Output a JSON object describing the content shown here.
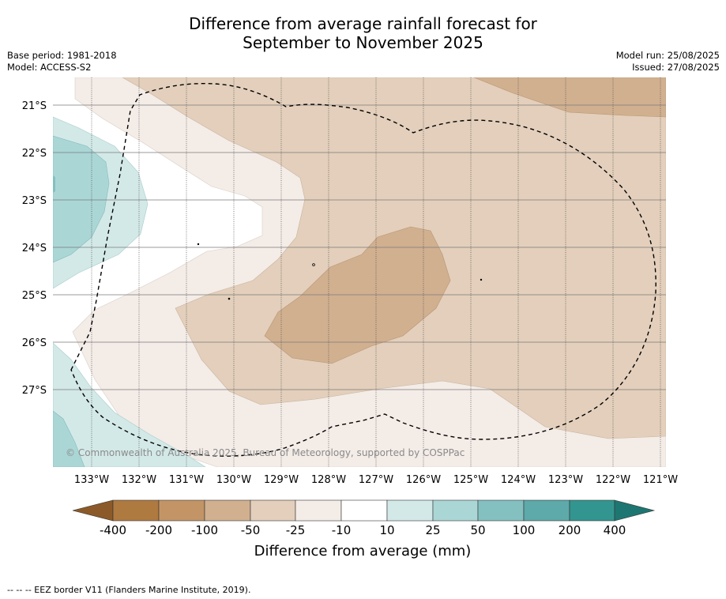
{
  "header": {
    "title_line1": "Difference from average rainfall forecast for",
    "title_line2": "September to November 2025",
    "base_period": "Base period: 1981-2018",
    "model": "Model: ACCESS-S2",
    "model_run": "Model run: 25/08/2025",
    "issued": "Issued: 27/08/2025"
  },
  "map": {
    "longitude_labels": [
      "133°W",
      "132°W",
      "131°W",
      "130°W",
      "129°W",
      "128°W",
      "127°W",
      "126°W",
      "125°W",
      "124°W",
      "123°W",
      "122°W",
      "121°W"
    ],
    "latitude_labels": [
      "21°S",
      "22°S",
      "23°S",
      "24°S",
      "25°S",
      "26°S",
      "27°S"
    ],
    "credit": "© Commonwealth of Australia 2025, Bureau of Meteorology, supported by COSPPac",
    "colors": {
      "dry_200_400": "#af7a40",
      "dry_100_200": "#c39566",
      "dry_50_100": "#d1b090",
      "dry_25_50": "#e3cfbb",
      "dry_10_25": "#f4ece7",
      "neutral": "#ffffff",
      "wet_10_25": "#d3e9e8",
      "wet_25_50": "#abd6d6",
      "wet_50_100": "#84c0c0",
      "wet_100_200": "#5ea9a9",
      "wet_200_400": "#33958f"
    }
  },
  "colorbar": {
    "tick_labels": [
      "-400",
      "-200",
      "-100",
      "-50",
      "-25",
      "-10",
      "10",
      "25",
      "50",
      "100",
      "200",
      "400"
    ],
    "title": "Difference from average (mm)",
    "low_end_color": "#8c5a28",
    "high_end_color": "#1d7671"
  },
  "footer": {
    "note": "--  --  -- EEZ border V11 (Flanders Marine Institute, 2019)."
  }
}
